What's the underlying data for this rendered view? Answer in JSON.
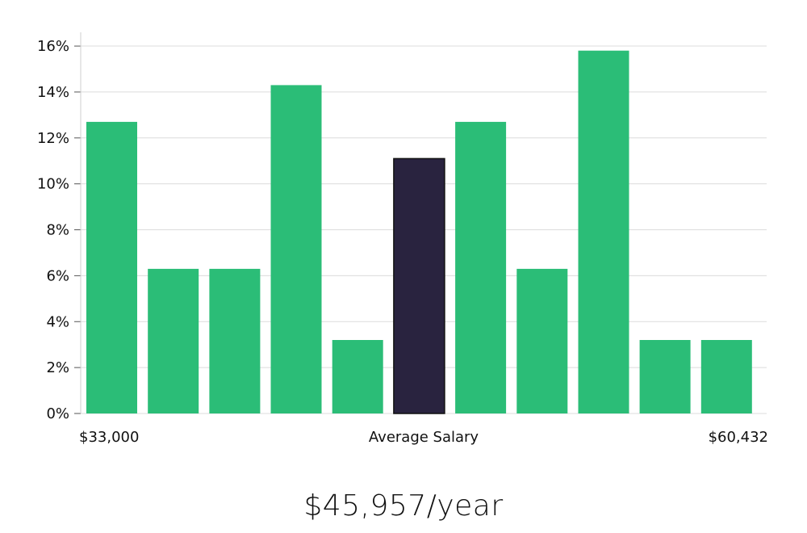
{
  "chart_data": {
    "type": "bar",
    "title": "",
    "xlabel": "Average Salary",
    "ylabel": "",
    "x_range_labels": {
      "min": "$33,000",
      "max": "$60,432"
    },
    "y_ticks": [
      "0%",
      "2%",
      "4%",
      "6%",
      "8%",
      "10%",
      "12%",
      "14%",
      "16%"
    ],
    "ylim": [
      0,
      16.6
    ],
    "values": [
      12.7,
      6.3,
      6.3,
      14.3,
      3.2,
      11.1,
      12.7,
      6.3,
      15.8,
      3.2,
      3.2
    ],
    "highlight_index": 5,
    "colors": {
      "bar": "#2bbd77",
      "highlight": "#29233f",
      "grid": "#dcdcdc",
      "axis": "#cfcfcf"
    }
  },
  "summary": {
    "salary_text": "$45,957/year"
  }
}
